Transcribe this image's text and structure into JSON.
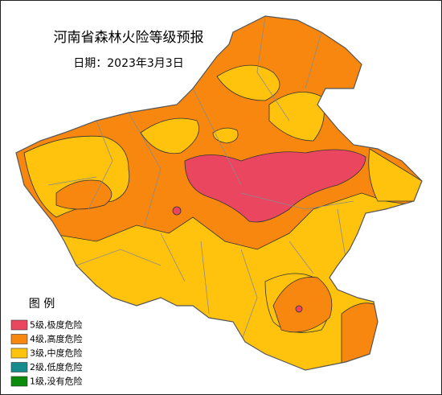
{
  "header": {
    "title": "河南省森林火险等级预报",
    "date": "日期：2023年3月3日"
  },
  "legend": {
    "title": "图 例",
    "items": [
      {
        "label": "5级,极度危险",
        "color": "#ea4660"
      },
      {
        "label": "4级,高度危险",
        "color": "#f7870f"
      },
      {
        "label": "3级,中度危险",
        "color": "#ffc30d"
      },
      {
        "label": "2级,低度危险",
        "color": "#168c8c"
      },
      {
        "label": "1级,没有危险",
        "color": "#0c8a0c"
      }
    ]
  }
}
